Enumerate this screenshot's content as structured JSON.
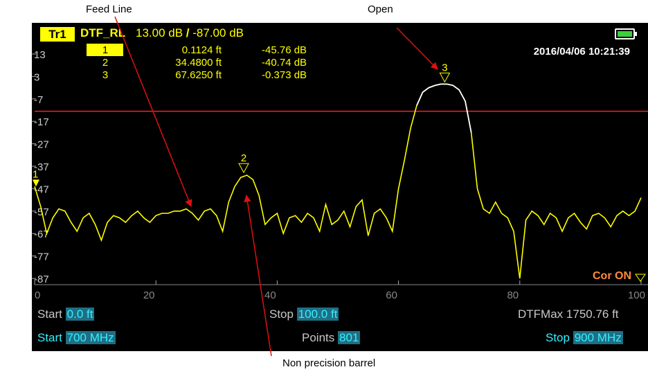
{
  "annotations": {
    "feed_line": "Feed Line",
    "open": "Open",
    "barrel": "Non precision barrel"
  },
  "header": {
    "trace": "Tr1",
    "measurement": "DTF_RL",
    "scale": "13.00 dB",
    "separator": "/",
    "ref": "-87.00 dB"
  },
  "timestamp": "2016/04/06  10:21:39",
  "markers": [
    {
      "id": "1",
      "distance": "0.1124 ft",
      "value": "-45.76 dB"
    },
    {
      "id": "2",
      "distance": "34.4800 ft",
      "value": "-40.74 dB"
    },
    {
      "id": "3",
      "distance": "67.6250 ft",
      "value": "-0.373 dB"
    }
  ],
  "cor_status": "Cor ON",
  "footer": {
    "start_label": "Start",
    "start_value": "0.0 ft",
    "stop_label": "Stop",
    "stop_value": "100.0 ft",
    "dtfmax_label": "DTFMax",
    "dtfmax_value": "1750.76 ft",
    "freq_start_label": "Start",
    "freq_start_value": "700 MHz",
    "points_label": "Points",
    "points_value": "801",
    "freq_stop_label": "Stop",
    "freq_stop_value": "900 MHz"
  },
  "colors": {
    "trace": "#ffff00",
    "limit_line": "#ff2020",
    "peak_highlight": "#ffffff",
    "cyan": "#33f0ff",
    "cor": "#ff8c3a"
  },
  "chart_data": {
    "type": "line",
    "xlabel": "",
    "ylabel": "",
    "xlim": [
      0,
      100
    ],
    "ylim": [
      -87,
      13
    ],
    "x_ticks": [
      "0",
      "20",
      "40",
      "60",
      "80",
      "100"
    ],
    "y_ticks": [
      "13",
      "3",
      "-7",
      "-17",
      "-27",
      "-37",
      "-47",
      "-57",
      "-67",
      "-77",
      "-87"
    ],
    "limit_line": -12.5,
    "grid": false,
    "series": [
      {
        "x": [
          0,
          1,
          2,
          3,
          4,
          5,
          6,
          7,
          8,
          9,
          10,
          11,
          12,
          13,
          14,
          15,
          16,
          17,
          18,
          19,
          20,
          21,
          22,
          23,
          24,
          25,
          26,
          27,
          28,
          29,
          30,
          31,
          32,
          33,
          34,
          35,
          36,
          37,
          38,
          39,
          40,
          41,
          42,
          43,
          44,
          45,
          46,
          47,
          48,
          49,
          50,
          51,
          52,
          53,
          54,
          55,
          56,
          57,
          58,
          59,
          60,
          61,
          62,
          63,
          64,
          65,
          66,
          67,
          68,
          69,
          70,
          71,
          72,
          73,
          74,
          75,
          76,
          77,
          78,
          79,
          80,
          81,
          82,
          83,
          84,
          85,
          86,
          87,
          88,
          89,
          90,
          91,
          92,
          93,
          94,
          95,
          96,
          97,
          98,
          99,
          100
        ],
        "y": [
          -46,
          -55,
          -67,
          -60,
          -56,
          -57,
          -62,
          -66,
          -60,
          -58,
          -63,
          -70,
          -62,
          -59,
          -60,
          -62,
          -59,
          -57,
          -60,
          -62,
          -59,
          -58,
          -58,
          -57,
          -57,
          -56,
          -58,
          -61,
          -57,
          -56,
          -59,
          -66,
          -53,
          -46,
          -42,
          -41,
          -43,
          -50,
          -63,
          -60,
          -58,
          -67,
          -60,
          -59,
          -62,
          -58,
          -60,
          -66,
          -54,
          -63,
          -61,
          -57,
          -64,
          -55,
          -52,
          -68,
          -58,
          -56,
          -60,
          -66,
          -47,
          -34,
          -20,
          -10,
          -4,
          -2,
          -1,
          -0.4,
          -0.4,
          -1,
          -3,
          -8,
          -22,
          -47,
          -56,
          -58,
          -53,
          -58,
          -60,
          -66,
          -87,
          -61,
          -57,
          -59,
          -63,
          -58,
          -60,
          -66,
          -60,
          -58,
          -62,
          -65,
          -59,
          -58,
          -60,
          -64,
          -59,
          -57,
          -59,
          -57,
          -51
        ]
      }
    ]
  }
}
